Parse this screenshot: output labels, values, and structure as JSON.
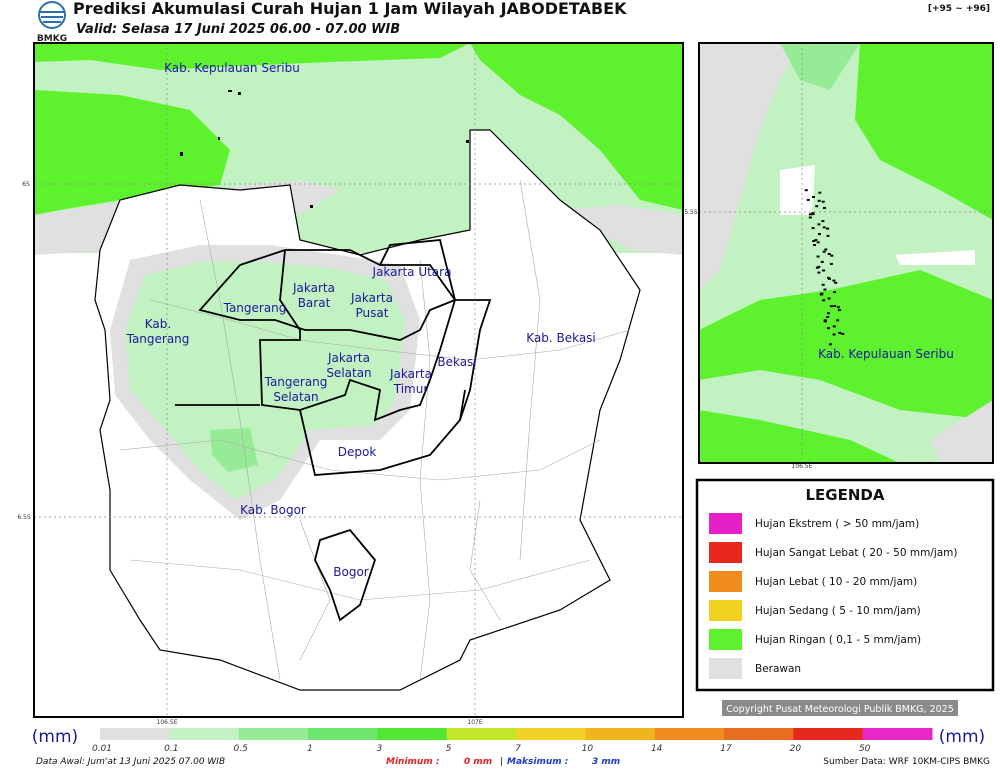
{
  "header": {
    "logo_text": "BMKG",
    "title": "Prediksi Akumulasi Curah Hujan 1 Jam Wilayah JABODETABEK",
    "valid": "Valid: Selasa 17 Juni 2025 06.00 - 07.00 WIB",
    "code": "[+95 ~ +96]"
  },
  "map": {
    "labels": [
      {
        "lines": [
          "Kab. Kepulauan Seribu"
        ]
      },
      {
        "lines": [
          "Jakarta Utara"
        ]
      },
      {
        "lines": [
          "Jakarta",
          "Barat"
        ]
      },
      {
        "lines": [
          "Jakarta",
          "Pusat"
        ]
      },
      {
        "lines": [
          "Tangerang"
        ]
      },
      {
        "lines": [
          "Kab.",
          "Tangerang"
        ]
      },
      {
        "lines": [
          "Jakarta",
          "Selatan"
        ]
      },
      {
        "lines": [
          "Jakarta",
          "Timur"
        ]
      },
      {
        "lines": [
          "Bekasi"
        ]
      },
      {
        "lines": [
          "Kab. Bekasi"
        ]
      },
      {
        "lines": [
          "Tangerang",
          "Selatan"
        ]
      },
      {
        "lines": [
          "Depok"
        ]
      },
      {
        "lines": [
          "Kab. Bogor"
        ]
      },
      {
        "lines": [
          "Bogor"
        ]
      }
    ],
    "grid_labels": [
      "6S",
      "6.5S",
      "106.5E",
      "107E"
    ]
  },
  "inset": {
    "label": "Kab. Kepulauan Seribu",
    "grid_labels": [
      "5.5S",
      "106.5E"
    ]
  },
  "legend": {
    "title": "LEGENDA",
    "items": [
      {
        "label": "Hujan Ekstrem ( > 50 mm/jam)",
        "color": "#e620c8"
      },
      {
        "label": "Hujan Sangat Lebat ( 20 - 50 mm/jam)",
        "color": "#e8281e"
      },
      {
        "label": "Hujan Lebat ( 10 - 20 mm/jam)",
        "color": "#f08c1e"
      },
      {
        "label": "Hujan Sedang ( 5 - 10 mm/jam)",
        "color": "#f0d21e"
      },
      {
        "label": "Hujan Ringan ( 0,1 - 5 mm/jam)",
        "color": "#5ef22e"
      },
      {
        "label": "Berawan",
        "color": "#e0e0e0"
      }
    ]
  },
  "copyright": "Copyright Pusat Meteorologi Publik BMKG, 2025",
  "colorbar": {
    "unit": "(mm)",
    "ticks": [
      "0.01",
      "0.1",
      "0.5",
      "1",
      "3",
      "5",
      "7",
      "10",
      "14",
      "17",
      "20",
      "50"
    ],
    "colors": [
      "#e0e0e0",
      "#c4f2c4",
      "#96ec96",
      "#6ee66e",
      "#50e632",
      "#c2e62a",
      "#f0d228",
      "#f0b41e",
      "#f08c1e",
      "#e66e1e",
      "#e6281e",
      "#e628c8"
    ]
  },
  "footer": {
    "data_awal": "Data Awal: Jum'at 13 Juni 2025 07.00 WIB",
    "min_label": "Minimum :",
    "min_value": "0 mm",
    "separator": "|",
    "max_label": "Maksimum :",
    "max_value": "3 mm",
    "source": "Sumber Data: WRF 10KM-CIPS BMKG"
  }
}
